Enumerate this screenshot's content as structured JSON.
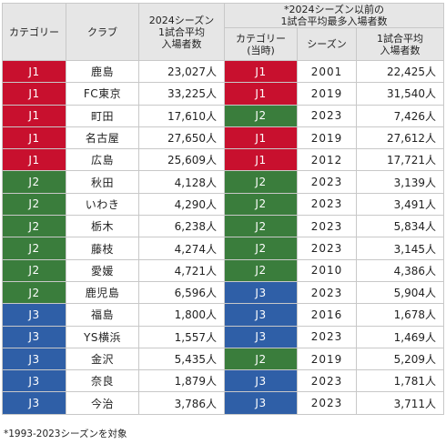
{
  "headers": {
    "category": "カテゴリー",
    "club": "クラブ",
    "avg2024": [
      "2024シーズン",
      "1試合平均",
      "入場者数"
    ],
    "prior_group": [
      "*2024シーズン以前の",
      "1試合平均最多入場者数"
    ],
    "prior_category": [
      "カテゴリー",
      "(当時)"
    ],
    "prior_season": "シーズン",
    "prior_avg": [
      "1試合平均",
      "入場者数"
    ]
  },
  "rows": [
    {
      "category": "J1",
      "club": "鹿島",
      "avg2024": "23,027人",
      "prior_category": "J1",
      "prior_season": "2001",
      "prior_avg": "22,425人"
    },
    {
      "category": "J1",
      "club": "FC東京",
      "avg2024": "33,225人",
      "prior_category": "J1",
      "prior_season": "2019",
      "prior_avg": "31,540人"
    },
    {
      "category": "J1",
      "club": "町田",
      "avg2024": "17,610人",
      "prior_category": "J2",
      "prior_season": "2023",
      "prior_avg": "7,426人"
    },
    {
      "category": "J1",
      "club": "名古屋",
      "avg2024": "27,650人",
      "prior_category": "J1",
      "prior_season": "2019",
      "prior_avg": "27,612人"
    },
    {
      "category": "J1",
      "club": "広島",
      "avg2024": "25,609人",
      "prior_category": "J1",
      "prior_season": "2012",
      "prior_avg": "17,721人"
    },
    {
      "category": "J2",
      "club": "秋田",
      "avg2024": "4,128人",
      "prior_category": "J2",
      "prior_season": "2023",
      "prior_avg": "3,139人"
    },
    {
      "category": "J2",
      "club": "いわき",
      "avg2024": "4,290人",
      "prior_category": "J2",
      "prior_season": "2023",
      "prior_avg": "3,491人"
    },
    {
      "category": "J2",
      "club": "栃木",
      "avg2024": "6,238人",
      "prior_category": "J2",
      "prior_season": "2023",
      "prior_avg": "5,834人"
    },
    {
      "category": "J2",
      "club": "藤枝",
      "avg2024": "4,274人",
      "prior_category": "J2",
      "prior_season": "2023",
      "prior_avg": "3,145人"
    },
    {
      "category": "J2",
      "club": "愛媛",
      "avg2024": "4,721人",
      "prior_category": "J2",
      "prior_season": "2010",
      "prior_avg": "4,386人"
    },
    {
      "category": "J2",
      "club": "鹿児島",
      "avg2024": "6,596人",
      "prior_category": "J3",
      "prior_season": "2023",
      "prior_avg": "5,904人"
    },
    {
      "category": "J3",
      "club": "福島",
      "avg2024": "1,800人",
      "prior_category": "J3",
      "prior_season": "2016",
      "prior_avg": "1,678人"
    },
    {
      "category": "J3",
      "club": "YS横浜",
      "avg2024": "1,557人",
      "prior_category": "J3",
      "prior_season": "2023",
      "prior_avg": "1,469人"
    },
    {
      "category": "J3",
      "club": "金沢",
      "avg2024": "5,435人",
      "prior_category": "J2",
      "prior_season": "2019",
      "prior_avg": "5,209人"
    },
    {
      "category": "J3",
      "club": "奈良",
      "avg2024": "1,879人",
      "prior_category": "J3",
      "prior_season": "2023",
      "prior_avg": "1,781人"
    },
    {
      "category": "J3",
      "club": "今治",
      "avg2024": "3,786人",
      "prior_category": "J3",
      "prior_season": "2023",
      "prior_avg": "3,711人"
    }
  ],
  "colors": {
    "J1": "#c8102e",
    "J2": "#3a7d3c",
    "J3": "#2f5fa7",
    "header_bg": "#e6e6e6"
  },
  "footnote": "*1993-2023シーズンを対象"
}
